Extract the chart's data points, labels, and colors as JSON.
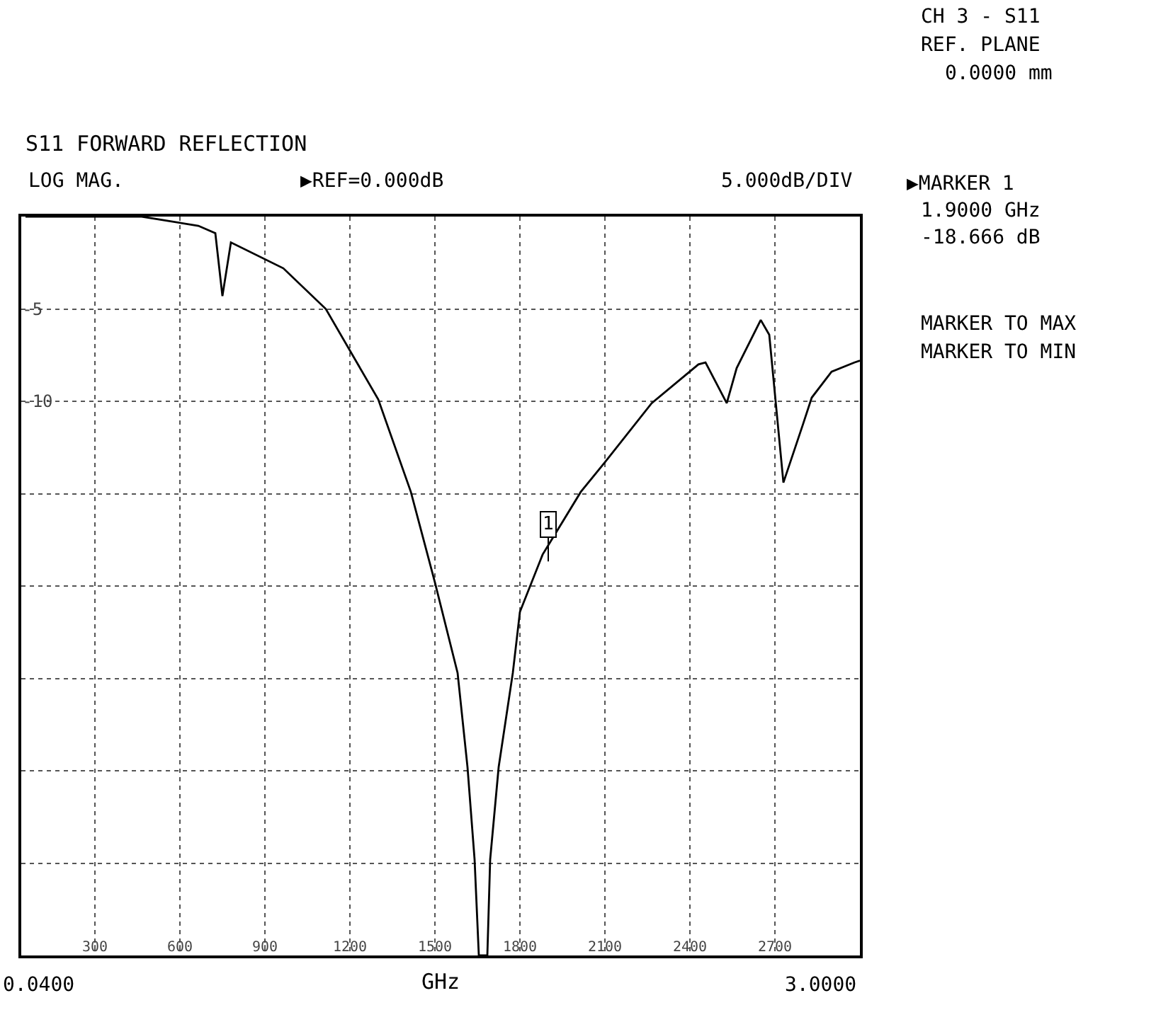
{
  "chart_data": {
    "type": "line",
    "title": "S11 FORWARD REFLECTION",
    "xlabel": "GHz",
    "x": [
      55,
      465,
      665,
      725,
      750,
      780,
      965,
      1115,
      1300,
      1415,
      1500,
      1580,
      1615,
      1640,
      1655,
      1685,
      1695,
      1725,
      1775,
      1800,
      1880,
      2015,
      2100,
      2265,
      2430,
      2455,
      2530,
      2565,
      2650,
      2680,
      2730,
      2800,
      2830,
      2900,
      2980,
      3000
    ],
    "series": [
      {
        "color": "#000000",
        "values": [
          0,
          0,
          -0.5,
          -0.9,
          -4.3,
          -1.4,
          -2.8,
          -5.0,
          -9.9,
          -14.9,
          -19.8,
          -24.7,
          -29.8,
          -34.8,
          -40,
          -40,
          -34.8,
          -29.8,
          -24.7,
          -21.4,
          -18.3,
          -14.9,
          -13.3,
          -10.1,
          -8.0,
          -7.9,
          -10.1,
          -8.2,
          -5.6,
          -6.4,
          -14.4,
          -11.2,
          -9.8,
          -8.4,
          -7.9,
          -7.8
        ]
      }
    ],
    "xlim": [
      40,
      3000
    ],
    "xticks": [
      300,
      600,
      900,
      1200,
      1500,
      1800,
      2100,
      2400,
      2700
    ],
    "ylim": [
      -40,
      0
    ],
    "yticks": [
      {
        "value": 0,
        "label": null
      },
      {
        "value": -5,
        "label": "-5"
      },
      {
        "value": -10,
        "label": "-10"
      },
      {
        "value": -15,
        "label": null
      },
      {
        "value": -20,
        "label": null
      },
      {
        "value": -25,
        "label": null
      },
      {
        "value": -30,
        "label": null
      },
      {
        "value": -35,
        "label": null
      },
      {
        "value": -40,
        "label": null
      }
    ],
    "grid": true,
    "marker": "none",
    "line_style": "solid",
    "annotations": [
      "LOG MAG.",
      "▶REF=0.000dB",
      "5.000dB/DIV",
      "CH 3 - S11",
      "REF. PLANE",
      "0.0000 mm",
      "▶MARKER 1",
      "1.9000 GHz",
      "-18.666 dB",
      "MARKER TO MAX",
      "MARKER TO MIN",
      "0.0400",
      "3.0000",
      {
        "text": "1",
        "x": 1900,
        "y": -18.666
      }
    ]
  }
}
